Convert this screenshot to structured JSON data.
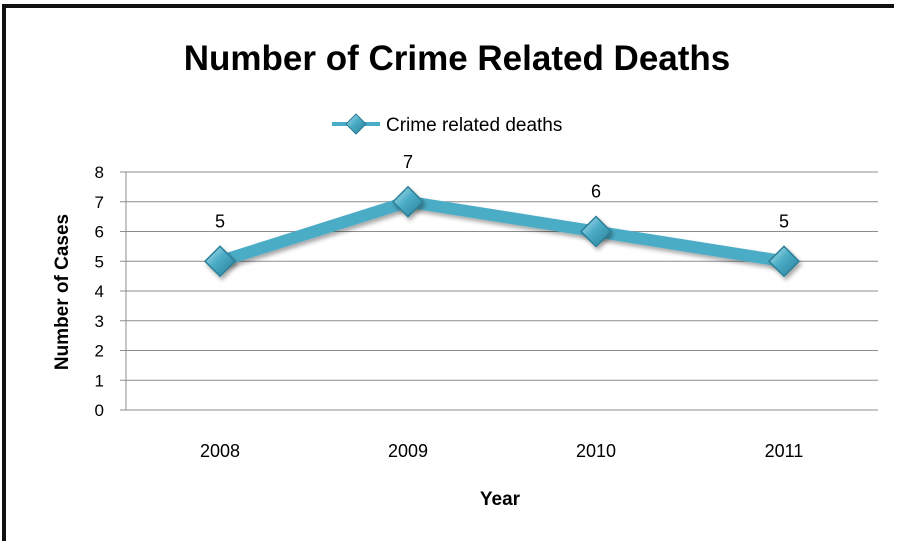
{
  "chart_data": {
    "type": "line",
    "title": "Number of Crime Related Deaths",
    "xlabel": "Year",
    "ylabel": "Number of Cases",
    "categories": [
      "2008",
      "2009",
      "2010",
      "2011"
    ],
    "series": [
      {
        "name": "Crime related deaths",
        "values": [
          5,
          7,
          6,
          5
        ],
        "color": "#4bacc6"
      }
    ],
    "data_labels": [
      "5",
      "7",
      "6",
      "5"
    ],
    "ylim": [
      0,
      8
    ],
    "yticks": [
      "0",
      "1",
      "2",
      "3",
      "4",
      "5",
      "6",
      "7",
      "8"
    ],
    "grid": true,
    "legend_position": "top"
  }
}
